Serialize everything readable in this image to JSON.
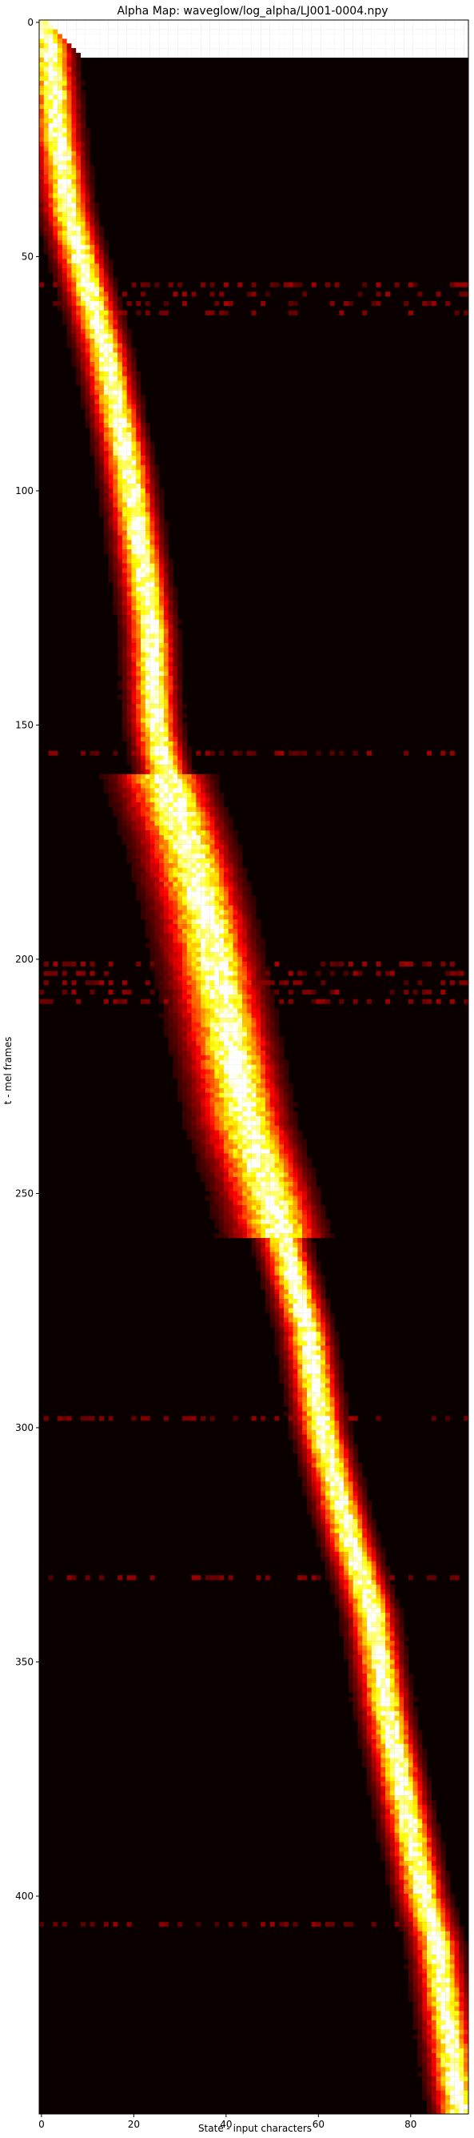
{
  "chart_data": {
    "type": "heatmap",
    "title": "Alpha Map: waveglow/log_alpha/LJ001-0004.npy",
    "xlabel": "State - input characters",
    "ylabel": "t - mel frames",
    "xlim": [
      -0.5,
      92.5
    ],
    "ylim": [
      446.5,
      -0.5
    ],
    "x_ticks": [
      0,
      20,
      40,
      60,
      80
    ],
    "y_ticks": [
      0,
      50,
      100,
      150,
      200,
      250,
      300,
      350,
      400
    ],
    "colormap": "hot",
    "colorscale": [
      "#0b0000",
      "#5c0000",
      "#b00000",
      "#ff1a00",
      "#ff7a00",
      "#ffd400",
      "#ffffff"
    ],
    "alignment_path": [
      {
        "t": 0,
        "state": 0
      },
      {
        "t": 5,
        "state": 2
      },
      {
        "t": 15,
        "state": 3
      },
      {
        "t": 25,
        "state": 4
      },
      {
        "t": 40,
        "state": 6
      },
      {
        "t": 55,
        "state": 10
      },
      {
        "t": 70,
        "state": 14
      },
      {
        "t": 80,
        "state": 16
      },
      {
        "t": 95,
        "state": 19
      },
      {
        "t": 115,
        "state": 22
      },
      {
        "t": 130,
        "state": 24
      },
      {
        "t": 150,
        "state": 25
      },
      {
        "t": 160,
        "state": 27
      },
      {
        "t": 175,
        "state": 32
      },
      {
        "t": 190,
        "state": 36
      },
      {
        "t": 205,
        "state": 39
      },
      {
        "t": 220,
        "state": 42
      },
      {
        "t": 235,
        "state": 45
      },
      {
        "t": 250,
        "state": 50
      },
      {
        "t": 265,
        "state": 54
      },
      {
        "t": 280,
        "state": 58
      },
      {
        "t": 300,
        "state": 61
      },
      {
        "t": 320,
        "state": 66
      },
      {
        "t": 340,
        "state": 72
      },
      {
        "t": 360,
        "state": 75
      },
      {
        "t": 380,
        "state": 79
      },
      {
        "t": 400,
        "state": 83
      },
      {
        "t": 410,
        "state": 86
      },
      {
        "t": 425,
        "state": 88
      },
      {
        "t": 440,
        "state": 90
      },
      {
        "t": 446,
        "state": 91
      }
    ]
  }
}
